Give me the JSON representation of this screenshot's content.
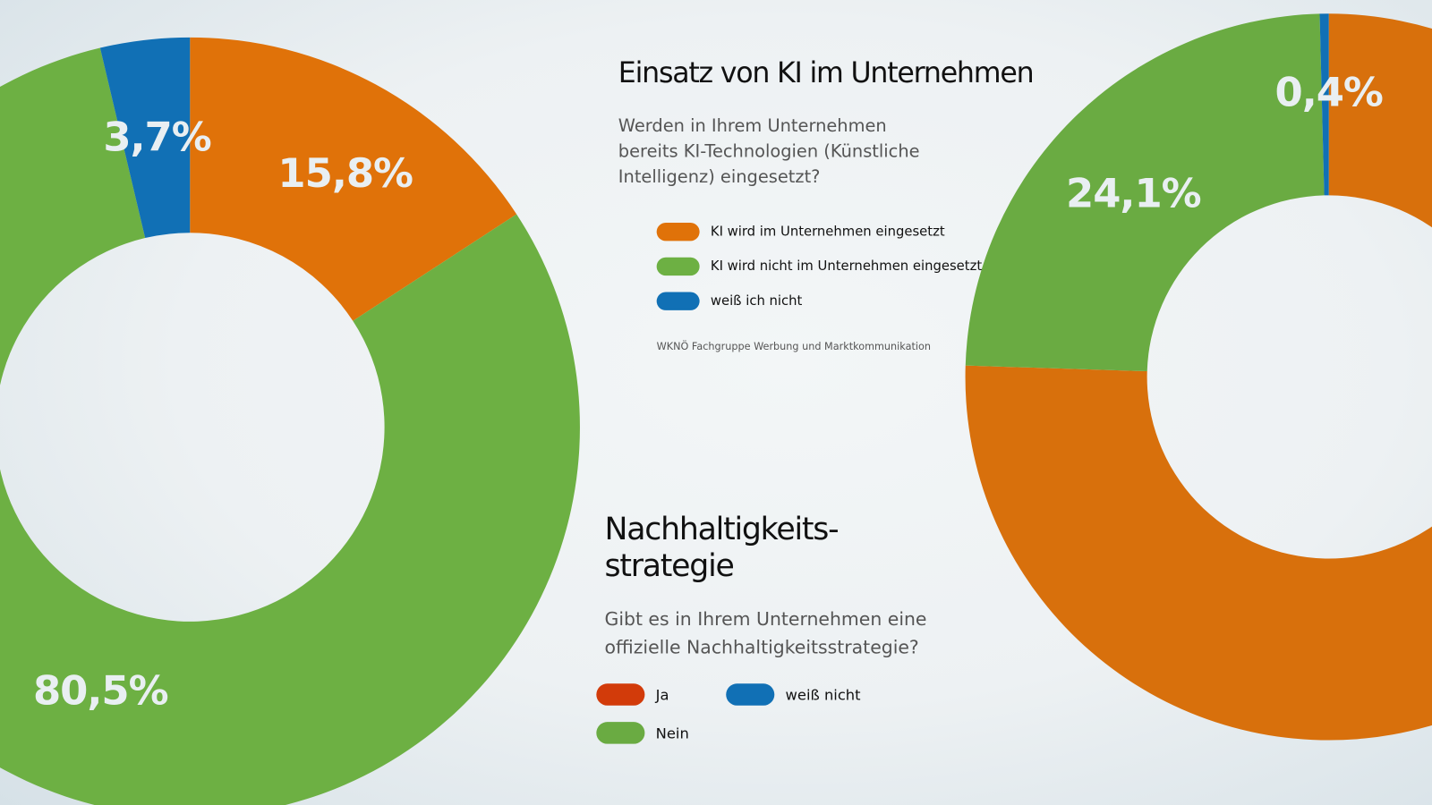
{
  "chart_data": [
    {
      "type": "pie",
      "donut": true,
      "title": "Einsatz von KI im Unternehmen",
      "subtitle": "Werden in Ihrem Unternehmen bereits KI-Technologien (Künstliche Intelligenz) eingesetzt?",
      "categories": [
        "KI wird im Unternehmen eingesetzt",
        "KI wird nicht im Unternehmen eingesetzt",
        "weiß ich nicht"
      ],
      "values": [
        15.8,
        80.5,
        3.7
      ],
      "labels": [
        "15,8%",
        "80,5%",
        "3,7%"
      ],
      "colors": [
        "#e07209",
        "#6db043",
        "#1170b5"
      ],
      "legend": "right",
      "source": "WKNÖ Fachgruppe Werbung und Marktkommunikation"
    },
    {
      "type": "pie",
      "donut": true,
      "title": "Nachhaltigkeits-strategie",
      "title_lines": [
        "Nachhaltigkeits-",
        "strategie"
      ],
      "subtitle": "Gibt es in Ihrem Unternehmen eine offizielle Nachhaltigkeitsstrategie?",
      "slices": [
        {
          "name": "orange",
          "value": 75.5,
          "label": "",
          "color": "#d8700c"
        },
        {
          "name": "Nein",
          "value": 24.1,
          "label": "24,1%",
          "color": "#6aab42"
        },
        {
          "name": "weiß nicht",
          "value": 0.4,
          "label": "0,4%",
          "color": "#1170b5"
        }
      ],
      "legend_items": [
        {
          "label": "Ja",
          "color": "#d23b0a"
        },
        {
          "label": "weiß nicht",
          "color": "#1170b5"
        },
        {
          "label": "Nein",
          "color": "#6aab42"
        }
      ],
      "legend": "left"
    }
  ]
}
